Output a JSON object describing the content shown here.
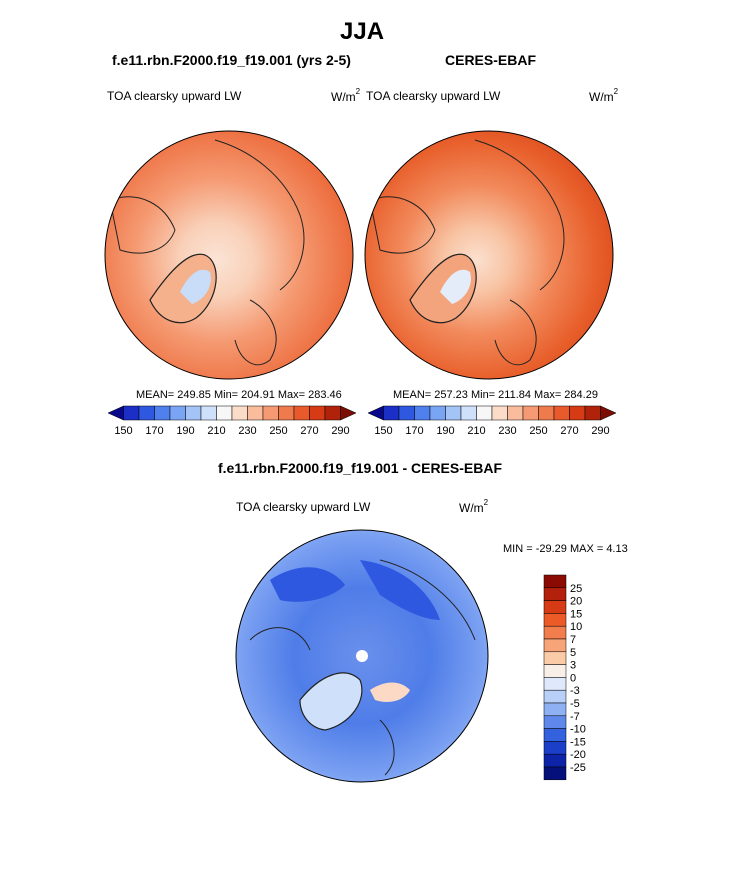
{
  "figure": {
    "season": "JJA",
    "model_title": "f.e11.rbn.F2000.f19_f19.001 (yrs 2-5)",
    "obs_title": "CERES-EBAF",
    "diff_title": "f.e11.rbn.F2000.f19_f19.001 - CERES-EBAF"
  },
  "chart_data": [
    {
      "type": "heatmap",
      "projection": "north-polar-stereographic",
      "variable_label": "TOA clearsky upward LW",
      "units_base": "W/m",
      "units_exp": "2",
      "stats_text": "MEAN= 249.85  Min= 204.91  Max= 283.46",
      "mean": 249.85,
      "min": 204.91,
      "max": 283.46,
      "colorbar": {
        "levels": [
          150,
          160,
          170,
          180,
          190,
          200,
          210,
          220,
          230,
          240,
          250,
          260,
          270,
          280,
          290
        ],
        "tick_labels": [
          "150",
          "170",
          "190",
          "210",
          "230",
          "250",
          "270",
          "290"
        ],
        "colors": [
          "#08088a",
          "#1b2fc6",
          "#2e58e0",
          "#4f80ee",
          "#7aa4f4",
          "#a4c4f8",
          "#cfe0fa",
          "#f7f7f7",
          "#fbdcc8",
          "#f9bc9c",
          "#f59a72",
          "#ef7a4c",
          "#e85a2c",
          "#d63b16",
          "#b0220a",
          "#7c0c04"
        ]
      }
    },
    {
      "type": "heatmap",
      "projection": "north-polar-stereographic",
      "variable_label": "TOA clearsky upward LW",
      "units_base": "W/m",
      "units_exp": "2",
      "stats_text": "MEAN= 257.23  Min= 211.84  Max= 284.29",
      "mean": 257.23,
      "min": 211.84,
      "max": 284.29,
      "colorbar": {
        "levels": [
          150,
          160,
          170,
          180,
          190,
          200,
          210,
          220,
          230,
          240,
          250,
          260,
          270,
          280,
          290
        ],
        "tick_labels": [
          "150",
          "170",
          "190",
          "210",
          "230",
          "250",
          "270",
          "290"
        ],
        "colors": [
          "#08088a",
          "#1b2fc6",
          "#2e58e0",
          "#4f80ee",
          "#7aa4f4",
          "#a4c4f8",
          "#cfe0fa",
          "#f7f7f7",
          "#fbdcc8",
          "#f9bc9c",
          "#f59a72",
          "#ef7a4c",
          "#e85a2c",
          "#d63b16",
          "#b0220a",
          "#7c0c04"
        ]
      }
    },
    {
      "type": "heatmap",
      "projection": "north-polar-stereographic",
      "variable_label": "TOA clearsky upward LW",
      "units_base": "W/m",
      "units_exp": "2",
      "stats_text": "MIN = -29.29 MAX =   4.13",
      "min": -29.29,
      "max": 4.13,
      "colorbar": {
        "levels": [
          25,
          20,
          15,
          10,
          7,
          5,
          3,
          0,
          -3,
          -5,
          -7,
          -10,
          -15,
          -20,
          -25
        ],
        "tick_labels": [
          "25",
          "20",
          "15",
          "10",
          "7",
          "5",
          "3",
          "0",
          "-3",
          "-5",
          "-7",
          "-10",
          "-15",
          "-20",
          "-25"
        ],
        "colors": [
          "#8c0a04",
          "#b3200c",
          "#d63b16",
          "#ec5a28",
          "#f27e4e",
          "#f7a478",
          "#fbcba8",
          "#f8efe8",
          "#dfe9fb",
          "#b8cff8",
          "#8fb0f2",
          "#6088ea",
          "#3461de",
          "#1b3fc9",
          "#0d24a8",
          "#06107a"
        ]
      }
    }
  ]
}
